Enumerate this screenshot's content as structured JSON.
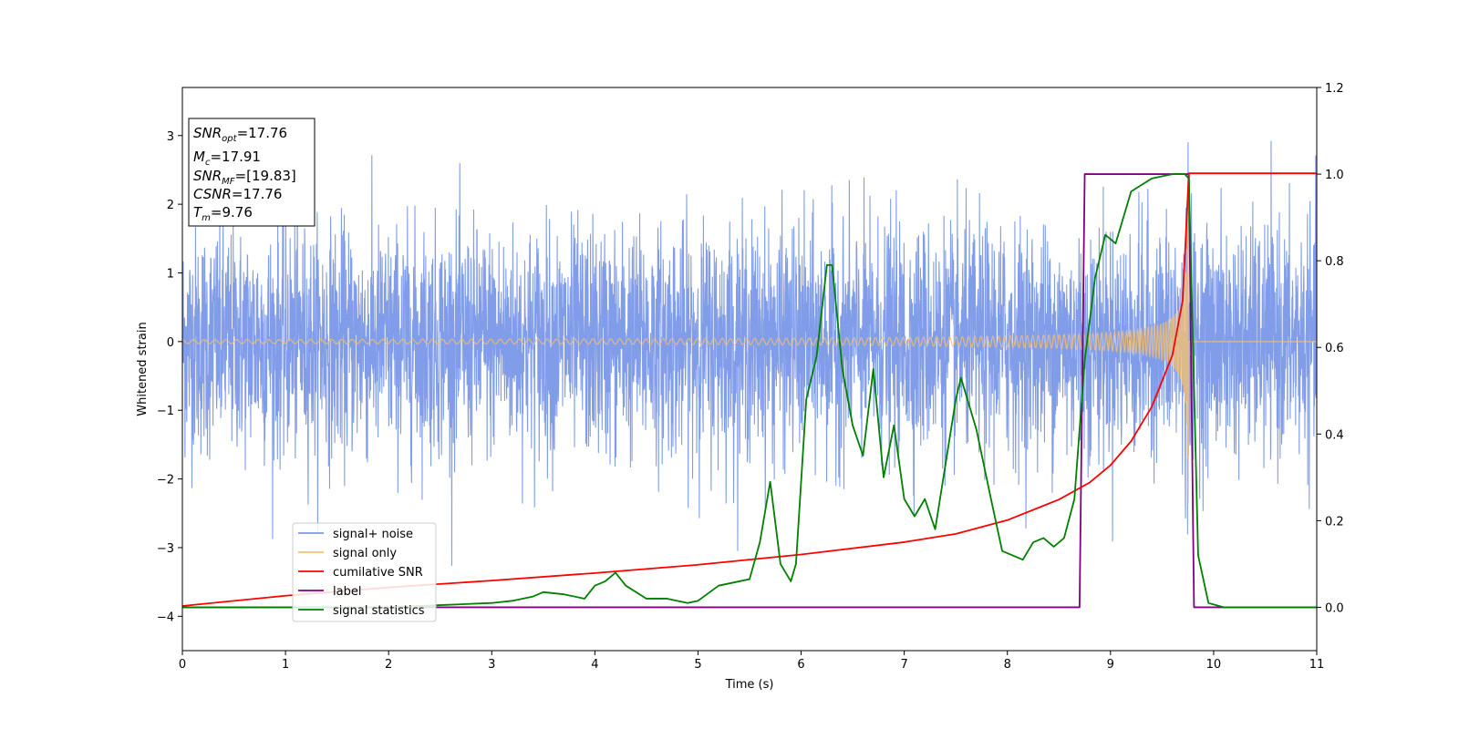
{
  "chart_data": {
    "type": "line",
    "xlabel": "Time (s)",
    "ylabel": "Whitened strain",
    "xlim": [
      0,
      11
    ],
    "ylim_left": [
      -4.5,
      3.7
    ],
    "ylim_right": [
      -0.1,
      1.2
    ],
    "x_ticks": [
      "0",
      "1",
      "2",
      "3",
      "4",
      "5",
      "6",
      "7",
      "8",
      "9",
      "10",
      "11"
    ],
    "y_left_ticks": [
      "−4",
      "−3",
      "−2",
      "−1",
      "0",
      "1",
      "2",
      "3"
    ],
    "y_right_ticks": [
      "0.0",
      "0.2",
      "0.4",
      "0.6",
      "0.8",
      "1.0",
      "1.2"
    ],
    "grid": false,
    "legend_position": "lower-left",
    "series": [
      {
        "name": "signal+ noise",
        "axis": "left",
        "color": "#7a98e8"
      },
      {
        "name": "signal only",
        "axis": "left",
        "color": "#f5c070"
      },
      {
        "name": "cumilative SNR",
        "axis": "left",
        "color": "#ff0000",
        "x": [
          0,
          1,
          2,
          3,
          4,
          5,
          6,
          7,
          7.5,
          8,
          8.5,
          8.8,
          9.0,
          9.2,
          9.4,
          9.6,
          9.7,
          9.76,
          11
        ],
        "y": [
          -3.85,
          -3.7,
          -3.58,
          -3.48,
          -3.37,
          -3.25,
          -3.1,
          -2.92,
          -2.8,
          -2.6,
          -2.3,
          -2.05,
          -1.8,
          -1.45,
          -0.95,
          -0.2,
          0.6,
          2.45,
          2.45
        ]
      },
      {
        "name": "label",
        "axis": "right",
        "color": "#800080",
        "x": [
          0,
          8.7,
          8.75,
          9.76,
          9.81,
          11
        ],
        "y": [
          0,
          0,
          1,
          1,
          0,
          0
        ]
      },
      {
        "name": "signal statistics",
        "axis": "right",
        "color": "#008000",
        "x": [
          0,
          1,
          2,
          2.5,
          3,
          3.2,
          3.4,
          3.5,
          3.7,
          3.9,
          4.0,
          4.1,
          4.2,
          4.3,
          4.5,
          4.7,
          4.9,
          5.0,
          5.2,
          5.4,
          5.5,
          5.6,
          5.7,
          5.8,
          5.9,
          5.95,
          6.05,
          6.15,
          6.25,
          6.3,
          6.4,
          6.5,
          6.6,
          6.7,
          6.8,
          6.9,
          7.0,
          7.1,
          7.2,
          7.3,
          7.4,
          7.5,
          7.55,
          7.7,
          7.85,
          7.95,
          8.05,
          8.15,
          8.25,
          8.35,
          8.45,
          8.55,
          8.65,
          8.75,
          8.85,
          8.95,
          9.05,
          9.2,
          9.4,
          9.6,
          9.72,
          9.76,
          9.85,
          9.95,
          10.1,
          10.5,
          11
        ],
        "y": [
          0,
          0,
          0,
          0.005,
          0.01,
          0.015,
          0.025,
          0.035,
          0.03,
          0.02,
          0.05,
          0.06,
          0.08,
          0.05,
          0.02,
          0.02,
          0.01,
          0.015,
          0.05,
          0.06,
          0.065,
          0.15,
          0.29,
          0.1,
          0.06,
          0.1,
          0.48,
          0.58,
          0.79,
          0.79,
          0.55,
          0.42,
          0.35,
          0.55,
          0.3,
          0.42,
          0.25,
          0.21,
          0.25,
          0.18,
          0.33,
          0.48,
          0.53,
          0.41,
          0.24,
          0.13,
          0.12,
          0.11,
          0.15,
          0.16,
          0.14,
          0.16,
          0.25,
          0.57,
          0.76,
          0.86,
          0.84,
          0.96,
          0.99,
          1.0,
          1.0,
          0.99,
          0.12,
          0.01,
          0.0,
          0.0,
          0.0
        ]
      }
    ],
    "legend": [
      "signal+ noise",
      "signal only",
      "cumilative SNR",
      "label",
      "signal statistics"
    ],
    "annotation": {
      "snr_opt": {
        "symbol": "SNR",
        "sub": "opt",
        "value": "=17.76"
      },
      "mc": {
        "symbol": "M",
        "sub": "c",
        "value": "=17.91"
      },
      "snr_mf": {
        "symbol": "SNR",
        "sub": "MF",
        "value": "=[19.83]"
      },
      "csnr": {
        "symbol": "CSNR",
        "sub": "",
        "value": "=17.76"
      },
      "tm": {
        "symbol": "T",
        "sub": "m",
        "value": "=9.76"
      }
    }
  }
}
